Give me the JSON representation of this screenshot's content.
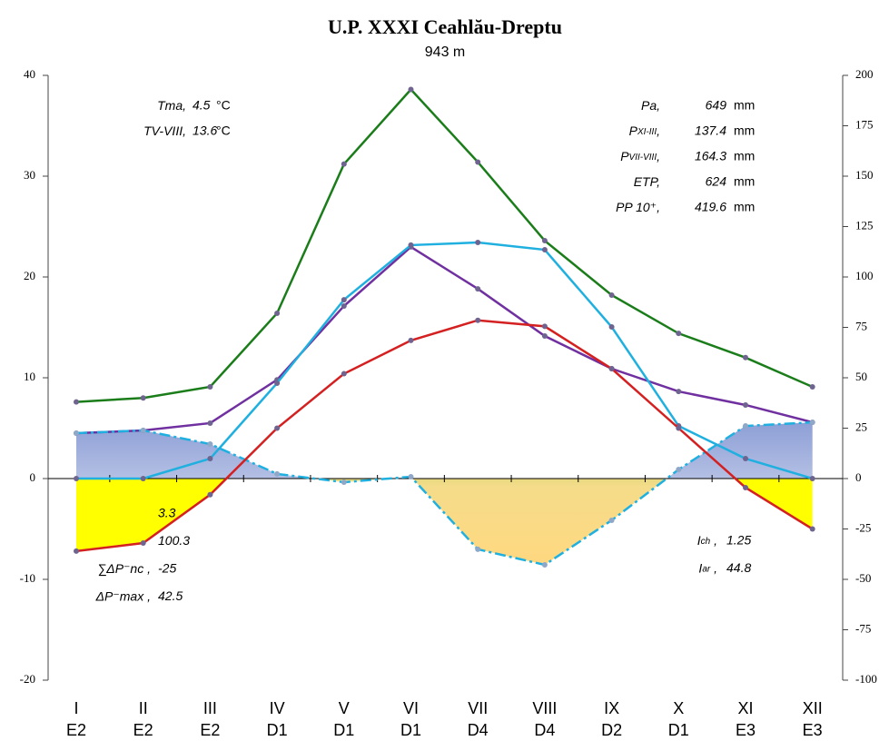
{
  "chart_data": {
    "type": "line",
    "title": "U.P. XXXI Ceahlău-Dreptu",
    "subtitle": "943 m",
    "categories": [
      "I",
      "II",
      "III",
      "IV",
      "V",
      "VI",
      "VII",
      "VIII",
      "IX",
      "X",
      "XI",
      "XII"
    ],
    "codes": [
      "E2",
      "E2",
      "E2",
      "D1",
      "D1",
      "D1",
      "D4",
      "D4",
      "D2",
      "D1",
      "E3",
      "E3"
    ],
    "ylim": [
      -20,
      40
    ],
    "yticks": [
      -20,
      -10,
      0,
      10,
      20,
      30,
      40
    ],
    "y2lim": [
      -100,
      200
    ],
    "y2ticks": [
      -100,
      -75,
      -50,
      -25,
      0,
      25,
      50,
      75,
      100,
      125,
      150,
      175,
      200
    ],
    "series": [
      {
        "color": "#1a7d1a",
        "axis": "y2",
        "values": [
          38,
          40,
          45.5,
          82,
          156,
          193,
          157,
          118,
          91,
          72,
          60,
          45.5
        ]
      },
      {
        "color": "#7030a0",
        "axis": "y2",
        "values": [
          22.5,
          23.9,
          27.5,
          49,
          85.6,
          114.9,
          94.1,
          70.7,
          54.5,
          43.2,
          36.5,
          27.9
        ]
      },
      {
        "color": "#1fb0e0",
        "axis": "y2",
        "values": [
          0,
          0,
          9.9,
          47.3,
          88.7,
          115.8,
          117.1,
          113.5,
          75.2,
          26.1,
          9.9,
          0
        ]
      },
      {
        "color": "#1fb0e0",
        "axis": "y2",
        "dashed": true,
        "values": [
          22.5,
          23.9,
          17.1,
          2.3,
          -1.8,
          0.9,
          -35.1,
          -42.8,
          -20.7,
          4.5,
          26.1,
          27.9
        ]
      },
      {
        "color": "#d42020",
        "values": [
          -7.2,
          -6.4,
          -1.6,
          5.0,
          10.4,
          13.7,
          15.7,
          15.1,
          10.9,
          5.0,
          -0.9,
          -5.0
        ]
      }
    ],
    "annotations": {
      "top_left": [
        {
          "label": "Tma,",
          "value": 4.5,
          "unit": "°C"
        },
        {
          "label": "TV-VIII,",
          "value": 13.6,
          "unit": "°C"
        }
      ],
      "top_right": [
        {
          "label": "Pa,",
          "value": 649,
          "unit": "mm"
        },
        {
          "label": "P",
          "sub": "XI-III",
          "tail": ",",
          "value": 137.4,
          "unit": "mm"
        },
        {
          "label": "P",
          "sub": "VII-VIII",
          "tail": ",",
          "value": 164.3,
          "unit": "mm"
        },
        {
          "label": "ETP,",
          "value": 624,
          "unit": "mm"
        },
        {
          "label": "PP 10⁺,",
          "value": 419.6,
          "unit": "mm"
        }
      ],
      "bottom_left": [
        {
          "value": 3.3
        },
        {
          "value": 100.3
        },
        {
          "label": "∑ΔP⁻nc ,",
          "value": -25
        },
        {
          "label": "ΔP⁻max ,",
          "value": 42.5
        }
      ],
      "bottom_right": [
        {
          "label": "I",
          "sub": "ch",
          "tail": " ,",
          "value": 1.25
        },
        {
          "label": "I",
          "sub": "ar",
          "tail": " ,",
          "value": 44.8
        }
      ]
    }
  }
}
